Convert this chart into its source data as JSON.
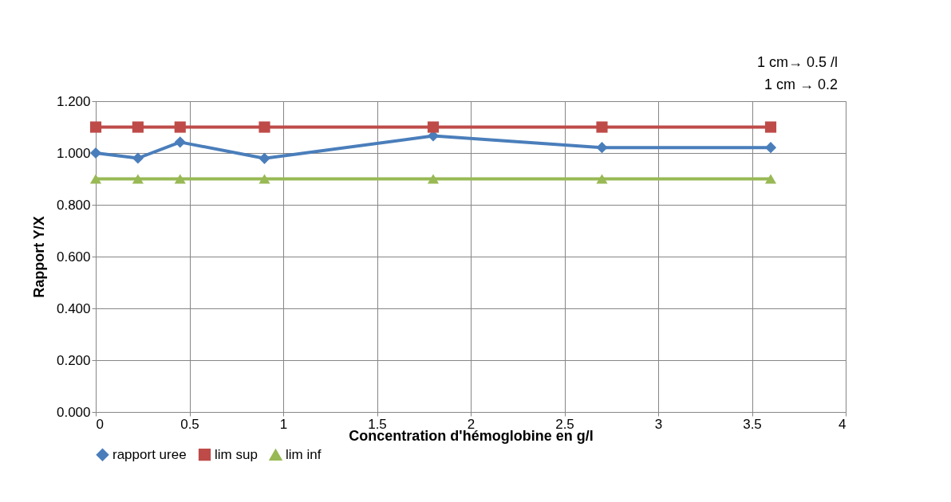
{
  "chart_data": {
    "type": "line",
    "xlabel": "Concentration d'hémoglobine en g/l",
    "ylabel": "Rapport Y/X",
    "annotations": [
      "1 cm→ 0.5 /l",
      "1 cm → 0.2"
    ],
    "x": [
      0,
      0.225,
      0.45,
      0.9,
      1.8,
      2.7,
      3.6
    ],
    "series": [
      {
        "name": "rapport uree",
        "color": "#4a7ebb",
        "marker": "diamond",
        "values": [
          1.0,
          0.98,
          1.042,
          0.979,
          1.066,
          1.021,
          1.021
        ]
      },
      {
        "name": "lim sup",
        "color": "#be4b48",
        "marker": "square",
        "values": [
          1.1,
          1.1,
          1.1,
          1.1,
          1.1,
          1.1,
          1.1
        ]
      },
      {
        "name": "lim inf",
        "color": "#98b954",
        "marker": "triangle",
        "values": [
          0.9,
          0.9,
          0.9,
          0.9,
          0.9,
          0.9,
          0.9
        ]
      }
    ],
    "xlim": [
      0,
      4
    ],
    "xticks": [
      0,
      0.5,
      1,
      1.5,
      2,
      2.5,
      3,
      3.5,
      4
    ],
    "ylim": [
      0,
      1.2
    ],
    "yticks": [
      {
        "value": 0,
        "label": "0.000"
      },
      {
        "value": 0.2,
        "label": "0.200"
      },
      {
        "value": 0.4,
        "label": "0.400"
      },
      {
        "value": 0.6,
        "label": "0.600"
      },
      {
        "value": 0.8,
        "label": "0.800"
      },
      {
        "value": 1.0,
        "label": "1.000"
      },
      {
        "value": 1.2,
        "label": "1.200"
      }
    ],
    "grid": true,
    "legend": "bottom",
    "line_style": "solid"
  }
}
